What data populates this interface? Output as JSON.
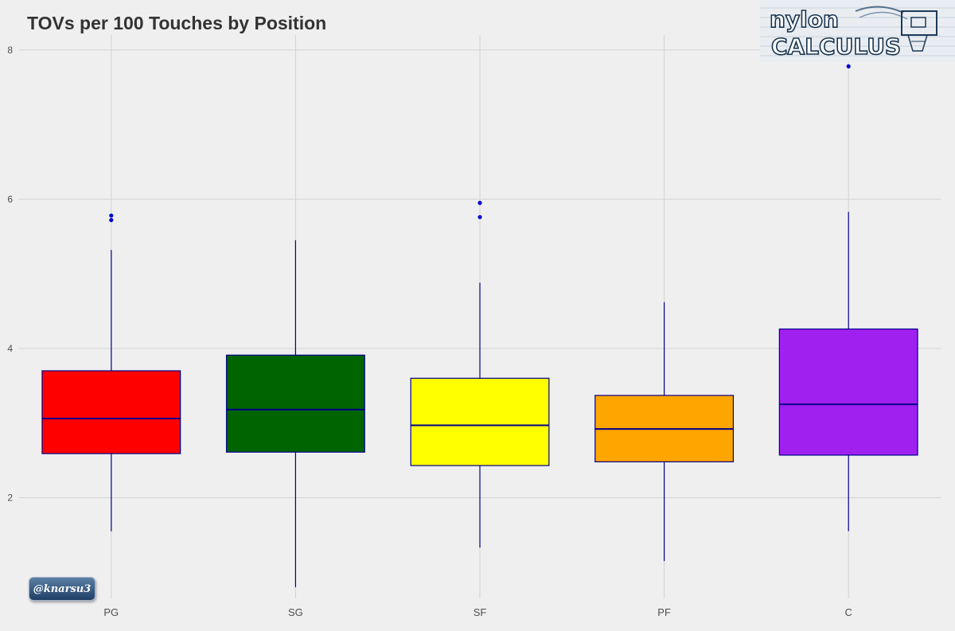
{
  "chart_data": {
    "type": "box",
    "title": "TOVs per 100 Touches by Position",
    "xlabel": "",
    "ylabel": "",
    "categories": [
      "PG",
      "SG",
      "SF",
      "PF",
      "C"
    ],
    "ylim": [
      0.65,
      8.2
    ],
    "yticks": [
      2,
      4,
      6,
      8
    ],
    "grid": true,
    "legend": "none",
    "boxes": [
      {
        "category": "PG",
        "whisker_low": 1.55,
        "q1": 2.59,
        "median": 3.06,
        "q3": 3.7,
        "whisker_high": 5.32,
        "outliers": [
          5.72,
          5.78
        ],
        "fill": "#ff0000"
      },
      {
        "category": "SG",
        "whisker_low": 0.8,
        "q1": 2.61,
        "median": 3.18,
        "q3": 3.91,
        "whisker_high": 5.45,
        "outliers": [],
        "fill": "#006400"
      },
      {
        "category": "SF",
        "whisker_low": 1.33,
        "q1": 2.43,
        "median": 2.97,
        "q3": 3.6,
        "whisker_high": 4.88,
        "outliers": [
          5.76,
          5.95
        ],
        "fill": "#ffff00"
      },
      {
        "category": "PF",
        "whisker_low": 1.15,
        "q1": 2.48,
        "median": 2.92,
        "q3": 3.37,
        "whisker_high": 4.62,
        "outliers": [],
        "fill": "#ffa500"
      },
      {
        "category": "C",
        "whisker_low": 1.55,
        "q1": 2.57,
        "median": 3.25,
        "q3": 4.26,
        "whisker_high": 5.83,
        "outliers": [
          7.78
        ],
        "fill": "#a020f0"
      }
    ],
    "line_color": "#00008b"
  },
  "logo_text": "nylon calculus",
  "watermark": "@knarsu3"
}
